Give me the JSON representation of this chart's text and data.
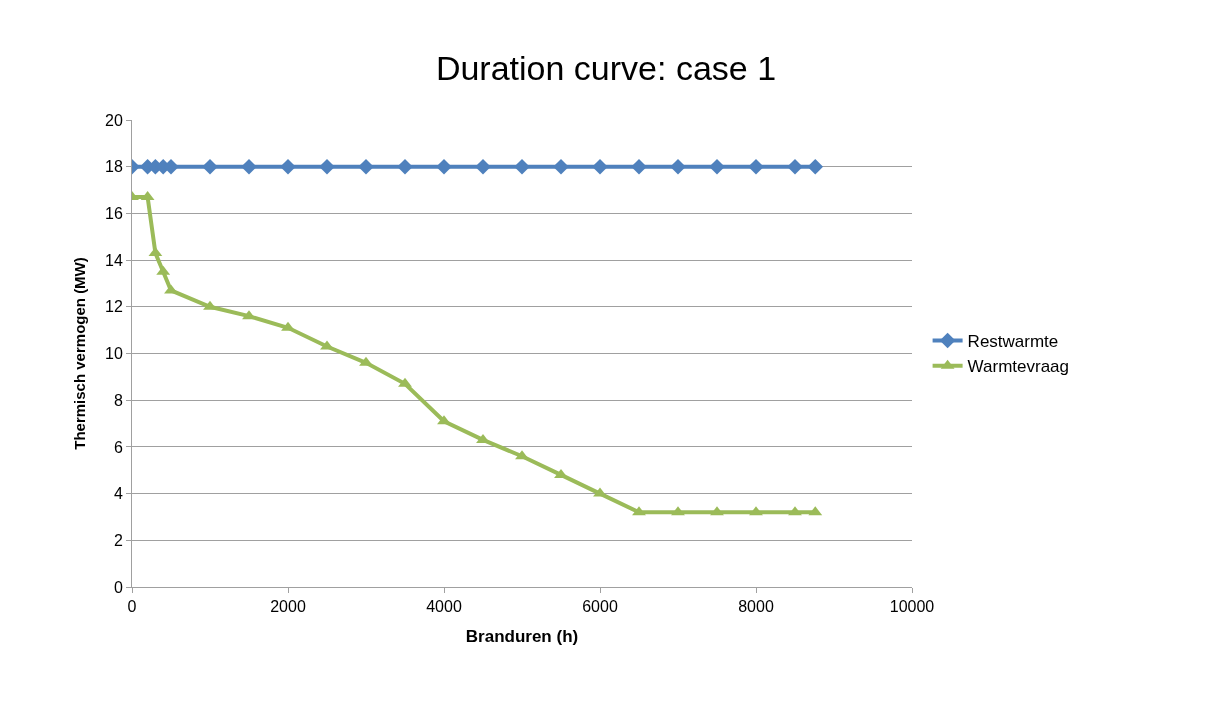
{
  "chart_data": {
    "type": "line",
    "title": "Duration curve: case 1",
    "xlabel": "Branduren (h)",
    "ylabel": "Thermisch vermogen (MW)",
    "xlim": [
      0,
      10000
    ],
    "xticks": [
      0,
      2000,
      4000,
      6000,
      8000,
      10000
    ],
    "ylim": [
      0,
      20
    ],
    "yticks": [
      0,
      2,
      4,
      6,
      8,
      10,
      12,
      14,
      16,
      18,
      20
    ],
    "grid": "y",
    "legend": "right",
    "line_style": "solid",
    "series": [
      {
        "name": "Restwarmte",
        "color": "#4f81bd",
        "marker": "diamond",
        "x": [
          0,
          200,
          300,
          400,
          500,
          1000,
          1500,
          2000,
          2500,
          3000,
          3500,
          4000,
          4500,
          5000,
          5500,
          6000,
          6500,
          7000,
          7500,
          8000,
          8500,
          8760
        ],
        "values": [
          18,
          18,
          18,
          18,
          18,
          18,
          18,
          18,
          18,
          18,
          18,
          18,
          18,
          18,
          18,
          18,
          18,
          18,
          18,
          18,
          18,
          18
        ]
      },
      {
        "name": "Warmtevraag",
        "color": "#9bbb59",
        "marker": "triangle",
        "x": [
          0,
          200,
          300,
          400,
          500,
          1000,
          1500,
          2000,
          2500,
          3000,
          3500,
          4000,
          4500,
          5000,
          5500,
          6000,
          6500,
          7000,
          7500,
          8000,
          8500,
          8760
        ],
        "values": [
          16.7,
          16.7,
          14.3,
          13.5,
          12.7,
          12.0,
          11.6,
          11.1,
          10.3,
          9.6,
          8.7,
          7.1,
          6.3,
          5.6,
          4.8,
          4.0,
          3.2,
          3.2,
          3.2,
          3.2,
          3.2,
          3.2
        ]
      }
    ]
  }
}
